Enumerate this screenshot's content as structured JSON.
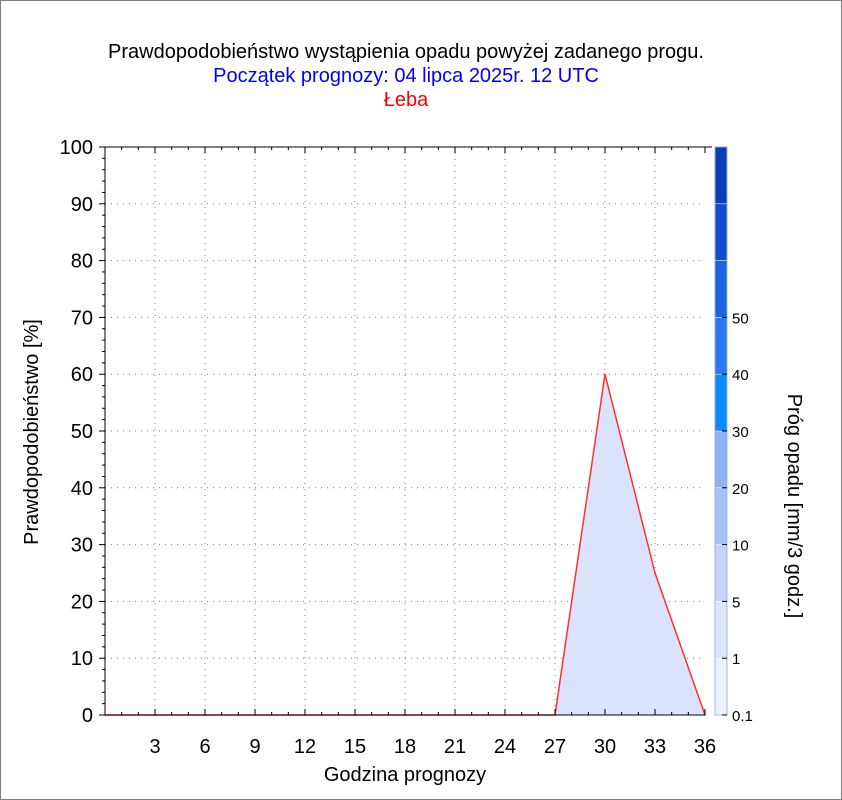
{
  "chart_data": {
    "type": "area",
    "title": "Prawdopodobieństwo wystąpienia opadu powyżej zadanego progu.",
    "subtitle": "Początek prognozy: 04 lipca 2025r. 12 UTC",
    "location": "Łeba",
    "xlabel": "Godzina prognozy",
    "ylabel": "Prawdopodobieństwo [%]",
    "xlim": [
      0,
      36
    ],
    "ylim": [
      0,
      100
    ],
    "x_ticks": [
      3,
      6,
      9,
      12,
      15,
      18,
      21,
      24,
      27,
      30,
      33,
      36
    ],
    "y_ticks": [
      0,
      10,
      20,
      30,
      40,
      50,
      60,
      70,
      80,
      90,
      100
    ],
    "grid": true,
    "series": [
      {
        "x": [
          0,
          3,
          6,
          9,
          12,
          15,
          18,
          21,
          24,
          27,
          30,
          33,
          36
        ],
        "y": [
          0,
          0,
          0,
          0,
          0,
          0,
          0,
          0,
          0,
          0,
          60,
          25,
          0
        ],
        "line_color": "#ff3030",
        "fill_color": "#dbe3fb"
      }
    ],
    "colorbar": {
      "label": "Próg opadu [mm/3 godz.]",
      "tick_labels": [
        "0.1",
        "1",
        "5",
        "10",
        "20",
        "30",
        "40",
        "50"
      ],
      "colors": [
        "#edf1fc",
        "#dde5fb",
        "#c6d4fa",
        "#a8c0f8",
        "#8fb2f5",
        "#0a8cff",
        "#2a78f0",
        "#1b64e0",
        "#0f4fcf",
        "#0a3fb8"
      ]
    }
  }
}
